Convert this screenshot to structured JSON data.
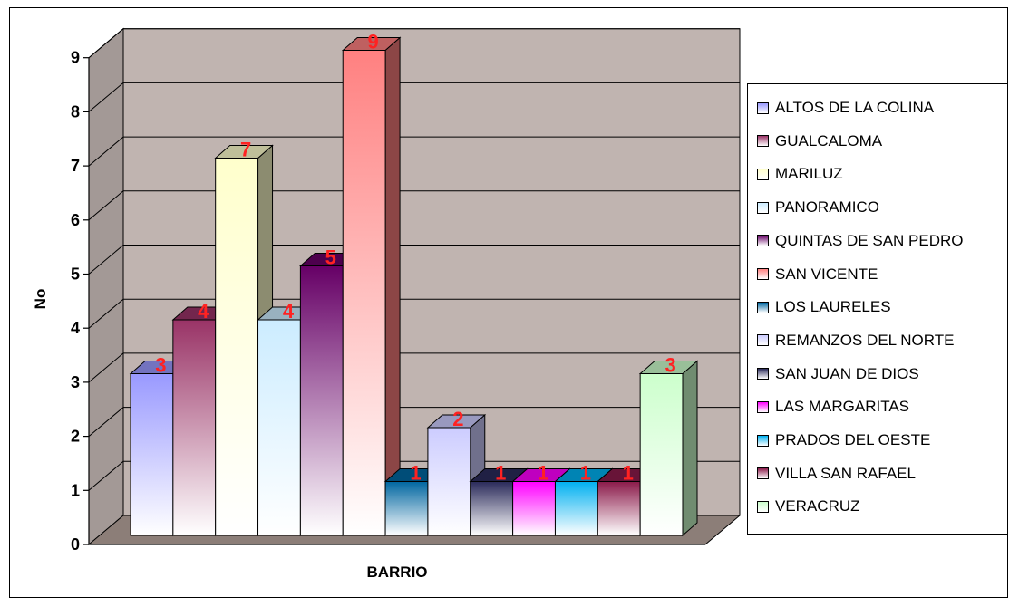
{
  "chart_data": {
    "type": "bar",
    "title": "",
    "xlabel": "BARRIO",
    "ylabel": "No",
    "ylim": [
      0,
      9
    ],
    "yticks": [
      "0",
      "1",
      "2",
      "3",
      "4",
      "5",
      "6",
      "7",
      "8",
      "9"
    ],
    "grid": true,
    "legend_position": "right",
    "series": [
      {
        "name": "ALTOS DE LA COLINA",
        "value": 3,
        "color": "#9999ff"
      },
      {
        "name": "GUALCALOMA",
        "value": 4,
        "color": "#993366"
      },
      {
        "name": "MARILUZ",
        "value": 7,
        "color": "#ffffcc"
      },
      {
        "name": "PANORAMICO",
        "value": 4,
        "color": "#ccecff"
      },
      {
        "name": "QUINTAS DE SAN PEDRO",
        "value": 5,
        "color": "#660066"
      },
      {
        "name": "SAN VICENTE",
        "value": 9,
        "color": "#ff8080"
      },
      {
        "name": "LOS LAURELES",
        "value": 1,
        "color": "#0066a0"
      },
      {
        "name": "REMANZOS DEL NORTE",
        "value": 2,
        "color": "#ccccff"
      },
      {
        "name": "SAN JUAN DE DIOS",
        "value": 1,
        "color": "#2a2a5a"
      },
      {
        "name": "LAS MARGARITAS",
        "value": 1,
        "color": "#ff00ff"
      },
      {
        "name": "PRADOS DEL OESTE",
        "value": 1,
        "color": "#00b0f0"
      },
      {
        "name": "VILLA SAN RAFAEL",
        "value": 1,
        "color": "#8b1a4a"
      },
      {
        "name": "VERACRUZ",
        "value": 3,
        "color": "#ccffcc"
      }
    ],
    "data_label_color": "#ff2222",
    "wall_color": "#c0b4b0",
    "floor_color": "#8c7e78"
  }
}
